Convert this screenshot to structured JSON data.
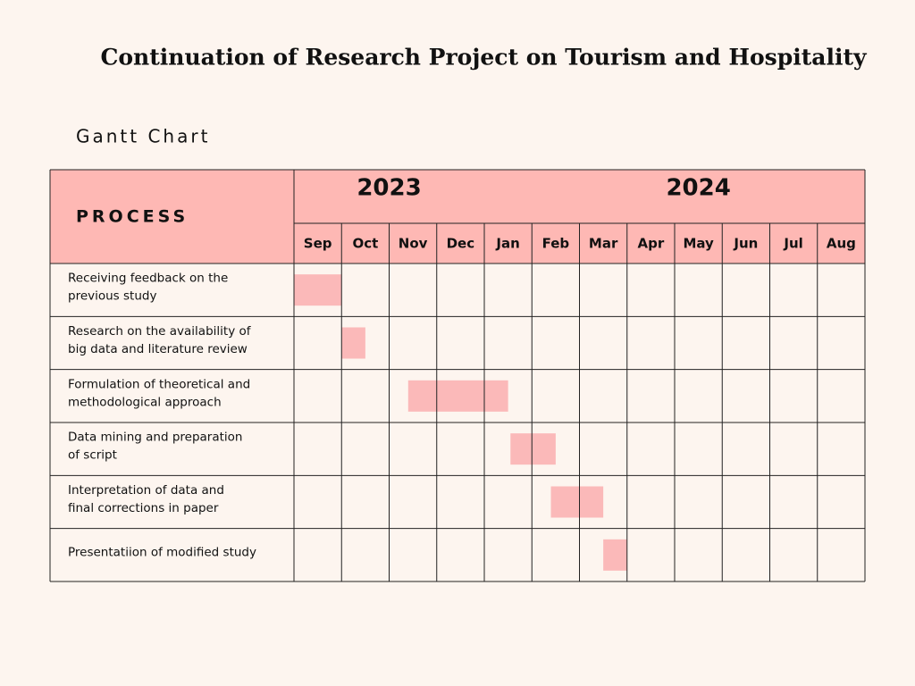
{
  "chart_data": {
    "type": "gantt",
    "title": "Continuation of Research Project on Tourism and Hospitality",
    "subtitle": "Gantt Chart",
    "header": "PROCESS",
    "years": [
      "2023",
      "2024"
    ],
    "categories": [
      "Sep",
      "Oct",
      "Nov",
      "Dec",
      "Jan",
      "Feb",
      "Mar",
      "Apr",
      "May",
      "Jun",
      "Jul",
      "Aug"
    ],
    "color": "#fbb9b9",
    "header_color": "#feb8b4",
    "tasks": [
      {
        "label": [
          "Receiving feedback on the",
          "previous study"
        ],
        "start": 0,
        "end": 1
      },
      {
        "label": [
          "Research on the availability of",
          "big data and literature review"
        ],
        "start": 1,
        "end": 1.5
      },
      {
        "label": [
          "Formulation of theoretical and",
          "methodological approach"
        ],
        "start": 2.4,
        "end": 4.5
      },
      {
        "label": [
          "Data mining and preparation",
          "of script"
        ],
        "start": 4.55,
        "end": 5.5
      },
      {
        "label": [
          "Interpretation of data and",
          "final corrections in paper"
        ],
        "start": 5.4,
        "end": 6.5
      },
      {
        "label": [
          "Presentatiion of modified study"
        ],
        "start": 6.5,
        "end": 7
      }
    ]
  }
}
